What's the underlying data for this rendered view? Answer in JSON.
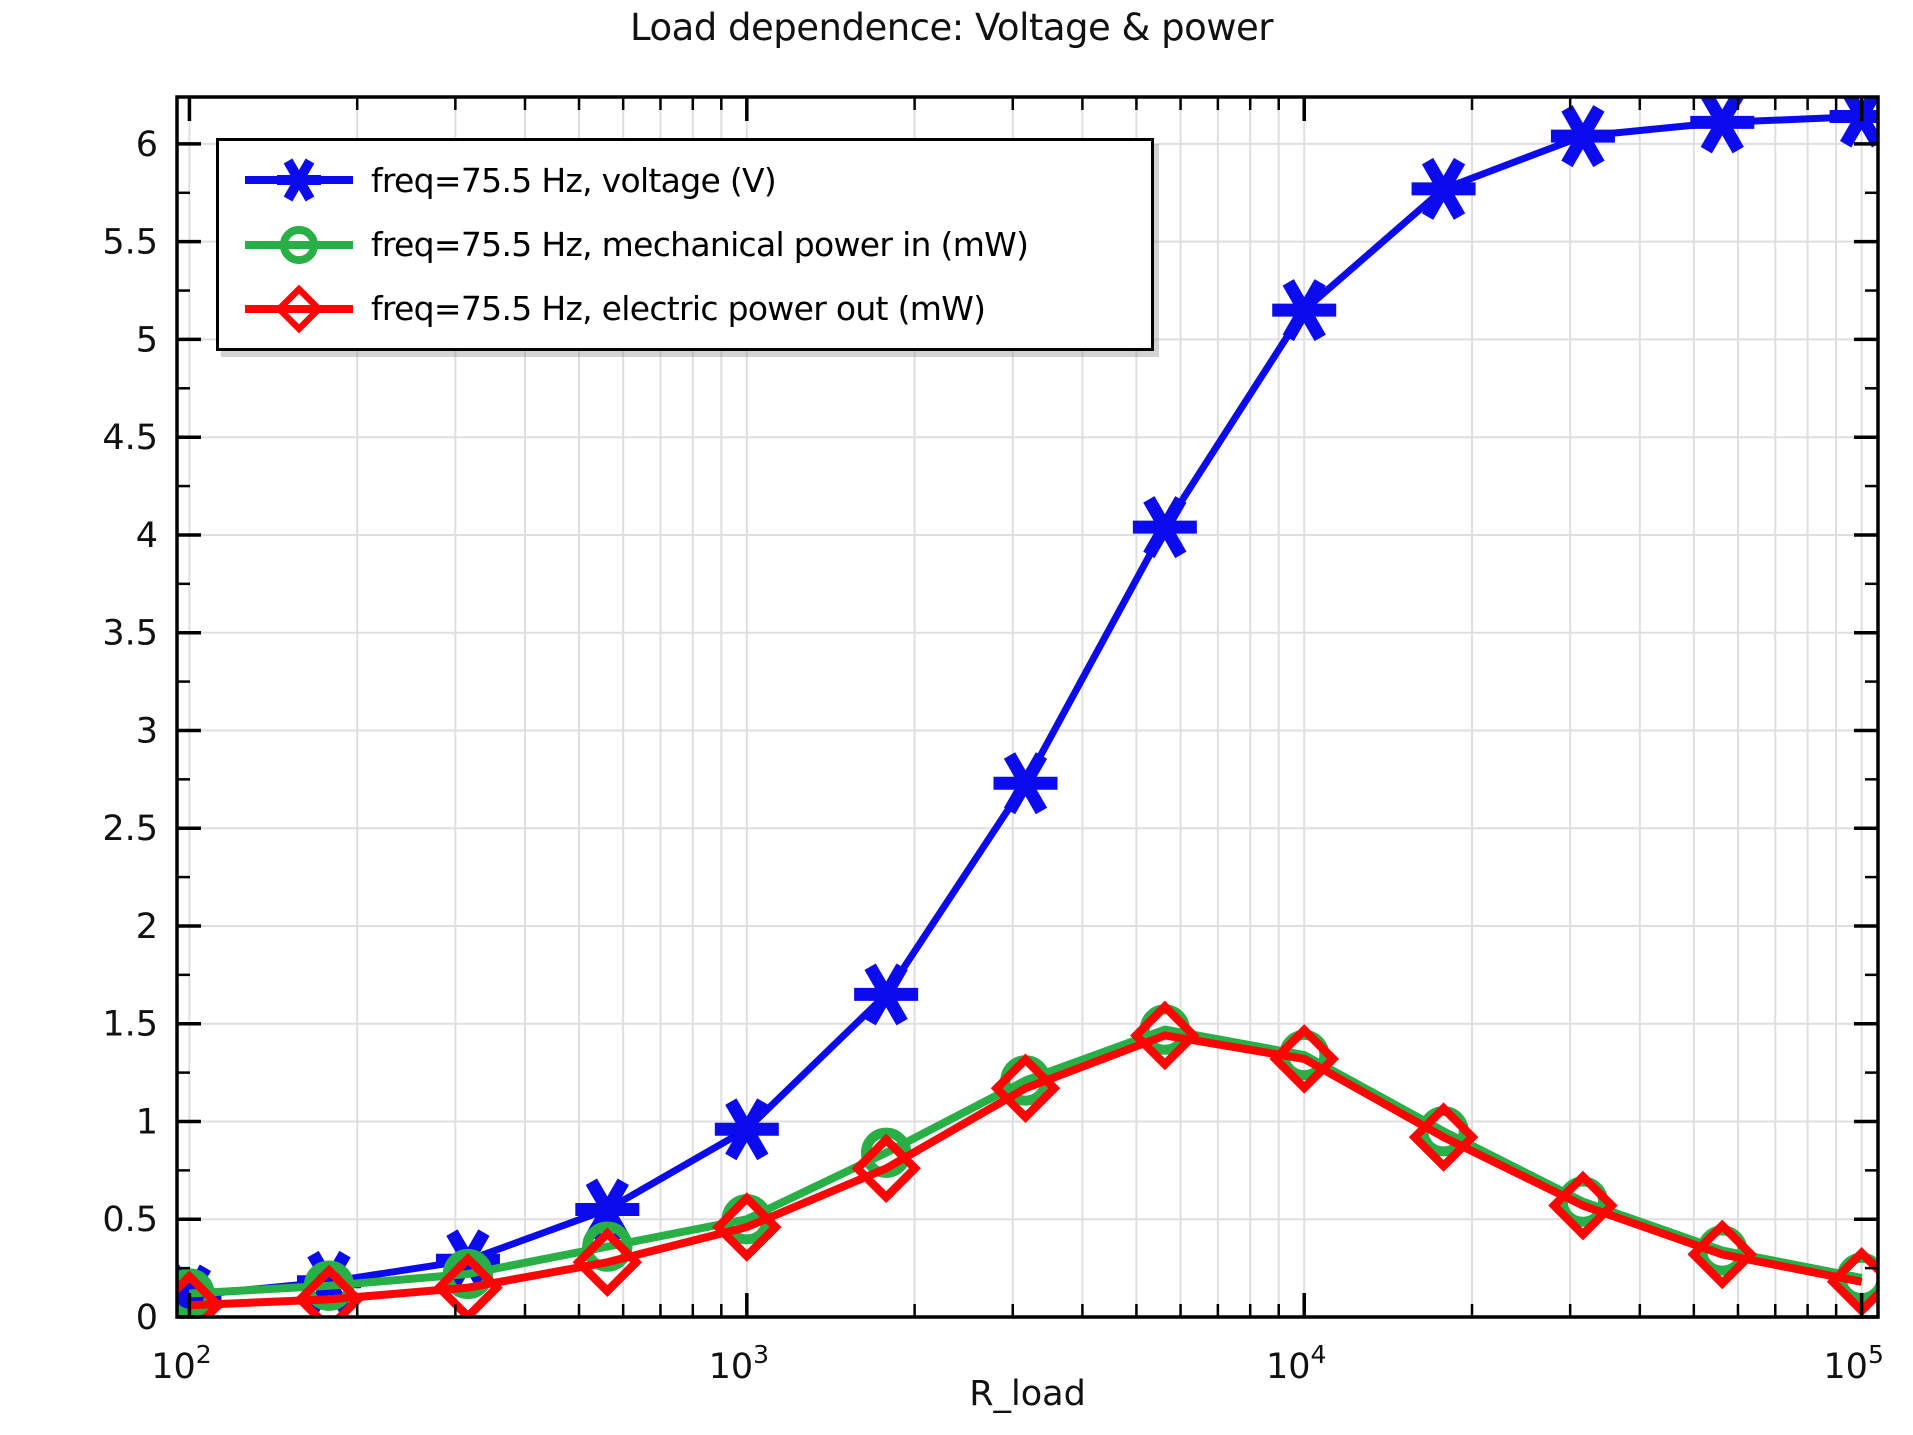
{
  "figure": {
    "title": "Load dependence: Voltage & power",
    "background": "#ffffff",
    "frame_color": "#000000"
  },
  "chart_data": {
    "type": "line",
    "title": "Load dependence: Voltage & power",
    "xlabel": "R_load",
    "ylabel": "",
    "x_scale": "log",
    "xlim": [
      95,
      107000
    ],
    "ylim": [
      0,
      6.24
    ],
    "grid": true,
    "grid_color": "#dfdfdf",
    "legend_position": "top-left",
    "x_major_ticks": [
      {
        "value": 100,
        "base": "10",
        "exp": "2"
      },
      {
        "value": 1000,
        "base": "10",
        "exp": "3"
      },
      {
        "value": 10000,
        "base": "10",
        "exp": "4"
      },
      {
        "value": 100000,
        "base": "10",
        "exp": "5"
      }
    ],
    "y_tick_labels": [
      "0",
      "0.5",
      "1",
      "1.5",
      "2",
      "2.5",
      "3",
      "3.5",
      "4",
      "4.5",
      "5",
      "5.5",
      "6"
    ],
    "y_major_step": 0.5,
    "y_minor_step": 0.25,
    "x": [
      100,
      178,
      316,
      562,
      1000,
      1778,
      3162,
      5623,
      10000,
      17783,
      31623,
      56234,
      100000
    ],
    "series": [
      {
        "name": "freq=75.5 Hz, voltage (V)",
        "color": "#0b0bee",
        "marker": "asterisk",
        "line_width": 7,
        "values": [
          0.11,
          0.18,
          0.29,
          0.55,
          0.96,
          1.65,
          2.73,
          4.04,
          5.15,
          5.77,
          6.04,
          6.11,
          6.14
        ]
      },
      {
        "name": "freq=75.5 Hz, mechanical power in (mW)",
        "color": "#28af46",
        "marker": "circle",
        "line_width": 8,
        "values": [
          0.12,
          0.16,
          0.22,
          0.36,
          0.5,
          0.84,
          1.21,
          1.47,
          1.34,
          0.95,
          0.59,
          0.34,
          0.2
        ]
      },
      {
        "name": "freq=75.5 Hz, electric power out (mW)",
        "color": "#fb0505",
        "marker": "diamond",
        "line_width": 8,
        "values": [
          0.06,
          0.09,
          0.15,
          0.28,
          0.46,
          0.76,
          1.17,
          1.44,
          1.32,
          0.92,
          0.57,
          0.32,
          0.18
        ]
      }
    ]
  }
}
